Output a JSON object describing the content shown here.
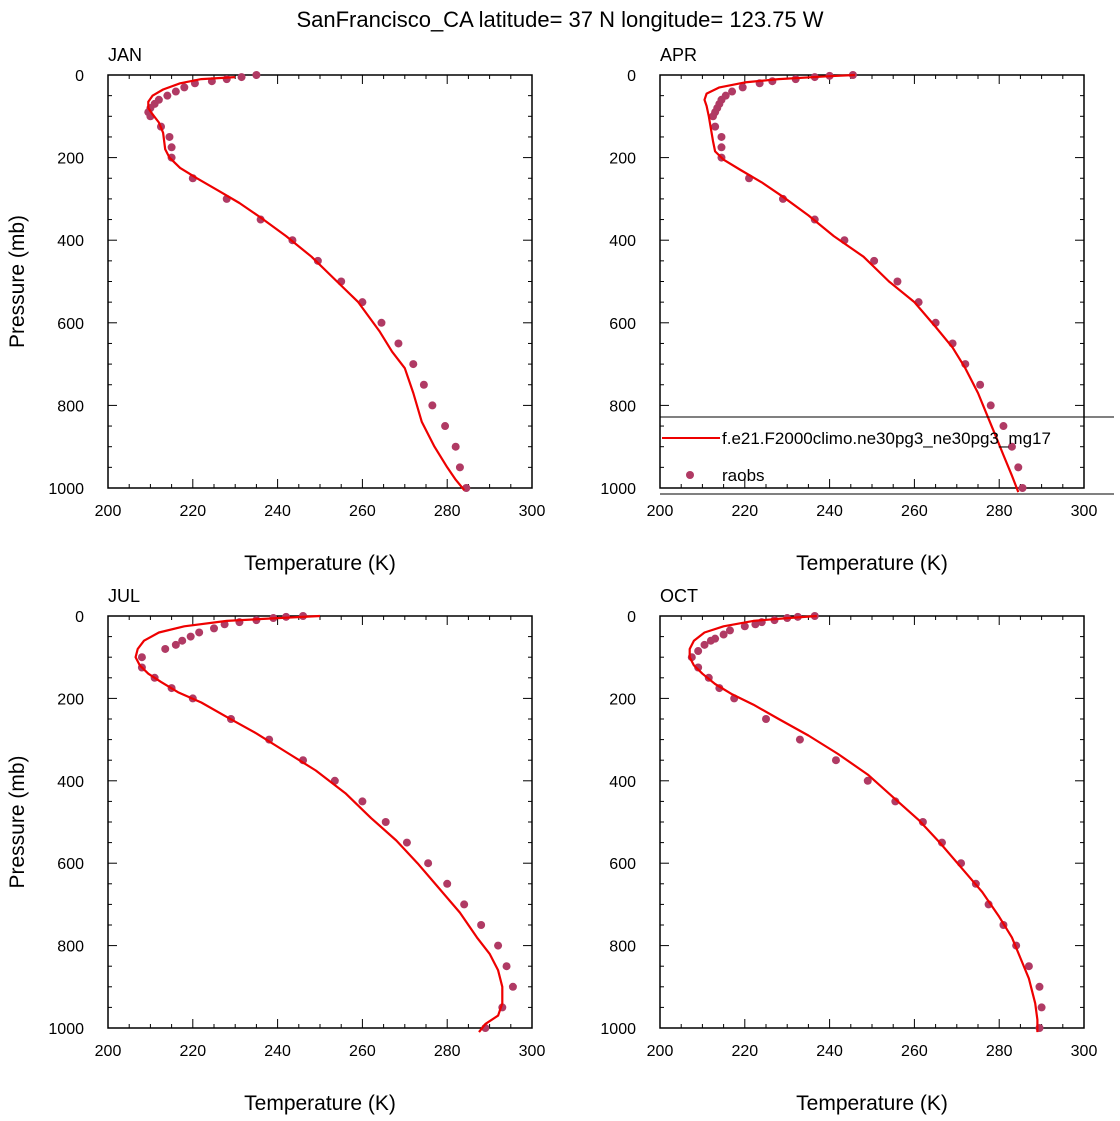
{
  "figure_title": "SanFrancisco_CA  latitude= 37 N longitude= 123.75 W",
  "legend": {
    "model_label": "f.e21.F2000climo.ne30pg3_ne30pg3_mg17",
    "obs_label": "raobs"
  },
  "colors": {
    "model_line": "#ee0000",
    "obs_marker": "#b03a64",
    "axis": "#000000"
  },
  "chart_data": [
    {
      "type": "line",
      "title": "JAN",
      "xlabel": "Temperature (K)",
      "ylabel": "Pressure (mb)",
      "xlim": [
        200,
        300
      ],
      "ylim": [
        1000,
        0
      ],
      "xticks": [
        200,
        220,
        240,
        260,
        280,
        300
      ],
      "yticks": [
        0,
        200,
        400,
        600,
        800,
        1000
      ],
      "series": [
        {
          "name": "f.e21.F2000climo.ne30pg3_ne30pg3_mg17",
          "kind": "line",
          "points": [
            [
              230,
              5
            ],
            [
              222,
              10
            ],
            [
              217,
              20
            ],
            [
              213,
              35
            ],
            [
              210.5,
              50
            ],
            [
              209.5,
              65
            ],
            [
              209.5,
              80
            ],
            [
              210.5,
              95
            ],
            [
              212,
              115
            ],
            [
              213,
              140
            ],
            [
              213.5,
              180
            ],
            [
              214.5,
              200
            ],
            [
              217,
              225
            ],
            [
              221,
              250
            ],
            [
              226,
              280
            ],
            [
              231,
              310
            ],
            [
              236,
              345
            ],
            [
              242,
              390
            ],
            [
              248,
              440
            ],
            [
              254,
              500
            ],
            [
              259,
              550
            ],
            [
              264,
              620
            ],
            [
              267,
              670
            ],
            [
              270,
              710
            ],
            [
              272,
              770
            ],
            [
              274,
              840
            ],
            [
              277,
              900
            ],
            [
              280,
              950
            ],
            [
              282,
              980
            ],
            [
              284,
              1005
            ]
          ]
        },
        {
          "name": "raobs",
          "kind": "scatter",
          "points": [
            [
              235,
              0
            ],
            [
              231.5,
              5
            ],
            [
              228,
              10
            ],
            [
              224.5,
              15
            ],
            [
              220.5,
              20
            ],
            [
              218,
              30
            ],
            [
              216,
              40
            ],
            [
              214,
              50
            ],
            [
              212,
              60
            ],
            [
              211,
              70
            ],
            [
              210,
              80
            ],
            [
              209.5,
              90
            ],
            [
              210,
              100
            ],
            [
              212.5,
              125
            ],
            [
              214.5,
              150
            ],
            [
              215,
              175
            ],
            [
              215,
              200
            ],
            [
              220,
              250
            ],
            [
              228,
              300
            ],
            [
              236,
              350
            ],
            [
              243.5,
              400
            ],
            [
              249.5,
              450
            ],
            [
              255,
              500
            ],
            [
              260,
              550
            ],
            [
              264.5,
              600
            ],
            [
              268.5,
              650
            ],
            [
              272,
              700
            ],
            [
              274.5,
              750
            ],
            [
              276.5,
              800
            ],
            [
              279.5,
              850
            ],
            [
              282,
              900
            ],
            [
              283,
              950
            ],
            [
              284.5,
              1000
            ]
          ]
        }
      ]
    },
    {
      "type": "line",
      "title": "APR",
      "xlabel": "Temperature (K)",
      "ylabel": "",
      "xlim": [
        200,
        300
      ],
      "ylim": [
        1000,
        0
      ],
      "xticks": [
        200,
        220,
        240,
        260,
        280,
        300
      ],
      "yticks": [
        0,
        200,
        400,
        600,
        800,
        1000
      ],
      "series": [
        {
          "name": "f.e21.F2000climo.ne30pg3_ne30pg3_mg17",
          "kind": "line",
          "points": [
            [
              246,
              0
            ],
            [
              240,
              3
            ],
            [
              228,
              10
            ],
            [
              220,
              18
            ],
            [
              214,
              30
            ],
            [
              211,
              45
            ],
            [
              210.5,
              60
            ],
            [
              211,
              75
            ],
            [
              211.5,
              100
            ],
            [
              212,
              130
            ],
            [
              212.5,
              160
            ],
            [
              213,
              185
            ],
            [
              215,
              205
            ],
            [
              219,
              230
            ],
            [
              224,
              260
            ],
            [
              229,
              295
            ],
            [
              235,
              340
            ],
            [
              241,
              390
            ],
            [
              248,
              440
            ],
            [
              254,
              500
            ],
            [
              260,
              550
            ],
            [
              265,
              610
            ],
            [
              269,
              660
            ],
            [
              272,
              710
            ],
            [
              275,
              770
            ],
            [
              277,
              820
            ],
            [
              279,
              870
            ],
            [
              281,
              920
            ],
            [
              283,
              970
            ],
            [
              284.5,
              1010
            ]
          ]
        },
        {
          "name": "raobs",
          "kind": "scatter",
          "points": [
            [
              245.5,
              0
            ],
            [
              240,
              2
            ],
            [
              236.5,
              5
            ],
            [
              232,
              10
            ],
            [
              226.5,
              15
            ],
            [
              223.5,
              20
            ],
            [
              219.5,
              30
            ],
            [
              217,
              40
            ],
            [
              215.5,
              50
            ],
            [
              214.5,
              60
            ],
            [
              214,
              70
            ],
            [
              213.5,
              80
            ],
            [
              213,
              90
            ],
            [
              212.5,
              100
            ],
            [
              213,
              125
            ],
            [
              214.5,
              150
            ],
            [
              214.5,
              175
            ],
            [
              214.5,
              200
            ],
            [
              221,
              250
            ],
            [
              229,
              300
            ],
            [
              236.5,
              350
            ],
            [
              243.5,
              400
            ],
            [
              250.5,
              450
            ],
            [
              256,
              500
            ],
            [
              261,
              550
            ],
            [
              265,
              600
            ],
            [
              269,
              650
            ],
            [
              272,
              700
            ],
            [
              275.5,
              750
            ],
            [
              278,
              800
            ],
            [
              281,
              850
            ],
            [
              283,
              900
            ],
            [
              284.5,
              950
            ],
            [
              285.5,
              1000
            ]
          ]
        }
      ]
    },
    {
      "type": "line",
      "title": "JUL",
      "xlabel": "Temperature (K)",
      "ylabel": "Pressure (mb)",
      "xlim": [
        200,
        300
      ],
      "ylim": [
        1000,
        0
      ],
      "xticks": [
        200,
        220,
        240,
        260,
        280,
        300
      ],
      "yticks": [
        0,
        200,
        400,
        600,
        800,
        1000
      ],
      "series": [
        {
          "name": "f.e21.F2000climo.ne30pg3_ne30pg3_mg17",
          "kind": "line",
          "points": [
            [
              250,
              0
            ],
            [
              240,
              5
            ],
            [
              228,
              12
            ],
            [
              218,
              25
            ],
            [
              212,
              40
            ],
            [
              208.5,
              60
            ],
            [
              207,
              80
            ],
            [
              206.5,
              100
            ],
            [
              207.5,
              120
            ],
            [
              209.5,
              140
            ],
            [
              212.5,
              160
            ],
            [
              216.5,
              185
            ],
            [
              222,
              210
            ],
            [
              228,
              245
            ],
            [
              235,
              285
            ],
            [
              242,
              330
            ],
            [
              249,
              375
            ],
            [
              256,
              430
            ],
            [
              262,
              490
            ],
            [
              268,
              545
            ],
            [
              273,
              600
            ],
            [
              278,
              660
            ],
            [
              283,
              720
            ],
            [
              287,
              780
            ],
            [
              290,
              820
            ],
            [
              292,
              860
            ],
            [
              293,
              900
            ],
            [
              293,
              940
            ],
            [
              292,
              970
            ],
            [
              289,
              990
            ],
            [
              287.5,
              1010
            ]
          ]
        },
        {
          "name": "raobs",
          "kind": "scatter",
          "points": [
            [
              246,
              0
            ],
            [
              242,
              2
            ],
            [
              239,
              5
            ],
            [
              235,
              10
            ],
            [
              231,
              15
            ],
            [
              227.5,
              20
            ],
            [
              225,
              30
            ],
            [
              221.5,
              40
            ],
            [
              219.5,
              50
            ],
            [
              217.5,
              60
            ],
            [
              216,
              70
            ],
            [
              213.5,
              80
            ],
            [
              208,
              100
            ],
            [
              208,
              125
            ],
            [
              211,
              150
            ],
            [
              215,
              175
            ],
            [
              220,
              200
            ],
            [
              229,
              250
            ],
            [
              238,
              300
            ],
            [
              246,
              350
            ],
            [
              253.5,
              400
            ],
            [
              260,
              450
            ],
            [
              265.5,
              500
            ],
            [
              270.5,
              550
            ],
            [
              275.5,
              600
            ],
            [
              280,
              650
            ],
            [
              284,
              700
            ],
            [
              288,
              750
            ],
            [
              292,
              800
            ],
            [
              294,
              850
            ],
            [
              295.5,
              900
            ],
            [
              293,
              950
            ],
            [
              289,
              1000
            ]
          ]
        }
      ]
    },
    {
      "type": "line",
      "title": "OCT",
      "xlabel": "Temperature (K)",
      "ylabel": "",
      "xlim": [
        200,
        300
      ],
      "ylim": [
        1000,
        0
      ],
      "xticks": [
        200,
        220,
        240,
        260,
        280,
        300
      ],
      "yticks": [
        0,
        200,
        400,
        600,
        800,
        1000
      ],
      "series": [
        {
          "name": "f.e21.F2000climo.ne30pg3_ne30pg3_mg17",
          "kind": "line",
          "points": [
            [
              237,
              0
            ],
            [
              230,
              5
            ],
            [
              222,
              12
            ],
            [
              215,
              25
            ],
            [
              210.5,
              40
            ],
            [
              208,
              60
            ],
            [
              207,
              80
            ],
            [
              207,
              100
            ],
            [
              208,
              120
            ],
            [
              210,
              140
            ],
            [
              213,
              165
            ],
            [
              217,
              190
            ],
            [
              222,
              215
            ],
            [
              228,
              250
            ],
            [
              235,
              290
            ],
            [
              242,
              335
            ],
            [
              249,
              385
            ],
            [
              255,
              440
            ],
            [
              261,
              495
            ],
            [
              266,
              550
            ],
            [
              271,
              610
            ],
            [
              276,
              670
            ],
            [
              280,
              730
            ],
            [
              283,
              780
            ],
            [
              285,
              830
            ],
            [
              287,
              880
            ],
            [
              288.5,
              940
            ],
            [
              289,
              980
            ],
            [
              289,
              1010
            ]
          ]
        },
        {
          "name": "raobs",
          "kind": "scatter",
          "points": [
            [
              236.5,
              0
            ],
            [
              232.5,
              2
            ],
            [
              230,
              5
            ],
            [
              227,
              10
            ],
            [
              224,
              15
            ],
            [
              222.5,
              20
            ],
            [
              220,
              25
            ],
            [
              216.5,
              35
            ],
            [
              215,
              45
            ],
            [
              213,
              55
            ],
            [
              212,
              60
            ],
            [
              210.5,
              70
            ],
            [
              209,
              85
            ],
            [
              207.5,
              100
            ],
            [
              209,
              125
            ],
            [
              211.5,
              150
            ],
            [
              214,
              175
            ],
            [
              217.5,
              200
            ],
            [
              225,
              250
            ],
            [
              233,
              300
            ],
            [
              241.5,
              350
            ],
            [
              249,
              400
            ],
            [
              255.5,
              450
            ],
            [
              262,
              500
            ],
            [
              266.5,
              550
            ],
            [
              271,
              600
            ],
            [
              274.5,
              650
            ],
            [
              277.5,
              700
            ],
            [
              281,
              750
            ],
            [
              284,
              800
            ],
            [
              287,
              850
            ],
            [
              289.5,
              900
            ],
            [
              290,
              950
            ],
            [
              289.5,
              1000
            ]
          ]
        }
      ]
    }
  ]
}
